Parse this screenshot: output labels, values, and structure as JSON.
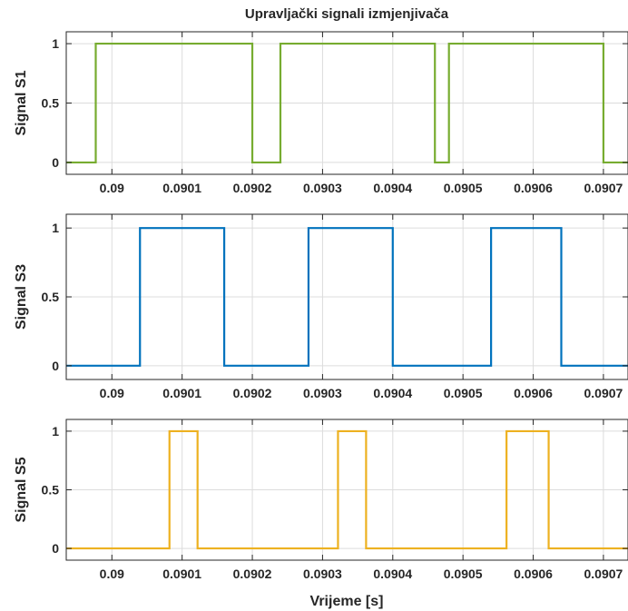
{
  "figure": {
    "title": "Upravljački signali izmjenjivača",
    "xlabel": "Vrijeme [s]"
  },
  "chart_data": [
    {
      "type": "line",
      "title": "Upravljački signali izmjenjivača",
      "xlabel": "",
      "ylabel": "Signal S1",
      "xlim": [
        0.089935,
        0.090735
      ],
      "ylim": [
        -0.1,
        1.1
      ],
      "grid": true,
      "x_ticks": [
        0.09,
        0.0901,
        0.0902,
        0.0903,
        0.0904,
        0.0905,
        0.0906,
        0.0907
      ],
      "x_tick_labels": [
        "0.09",
        "0.0901",
        "0.0902",
        "0.0903",
        "0.0904",
        "0.0905",
        "0.0906",
        "0.0907"
      ],
      "y_ticks": [
        0,
        0.5,
        1
      ],
      "y_tick_labels": [
        "0",
        "0.5",
        "1"
      ],
      "color": "#77AC30",
      "series": [
        {
          "x": [
            0.089935,
            0.089977,
            0.089977,
            0.0902,
            0.0902,
            0.09024,
            0.09024,
            0.09046,
            0.09046,
            0.09048,
            0.09048,
            0.0907,
            0.0907,
            0.090735
          ],
          "y": [
            0,
            0,
            1,
            1,
            0,
            0,
            1,
            1,
            0,
            0,
            1,
            1,
            0,
            0
          ]
        }
      ]
    },
    {
      "type": "line",
      "title": "",
      "xlabel": "",
      "ylabel": "Signal S3",
      "xlim": [
        0.089935,
        0.090735
      ],
      "ylim": [
        -0.1,
        1.1
      ],
      "grid": true,
      "x_ticks": [
        0.09,
        0.0901,
        0.0902,
        0.0903,
        0.0904,
        0.0905,
        0.0906,
        0.0907
      ],
      "x_tick_labels": [
        "0.09",
        "0.0901",
        "0.0902",
        "0.0903",
        "0.0904",
        "0.0905",
        "0.0906",
        "0.0907"
      ],
      "y_ticks": [
        0,
        0.5,
        1
      ],
      "y_tick_labels": [
        "0",
        "0.5",
        "1"
      ],
      "color": "#0072BD",
      "series": [
        {
          "x": [
            0.089935,
            0.09004,
            0.09004,
            0.09016,
            0.09016,
            0.09028,
            0.09028,
            0.0904,
            0.0904,
            0.09054,
            0.09054,
            0.09064,
            0.09064,
            0.090735
          ],
          "y": [
            0,
            0,
            1,
            1,
            0,
            0,
            1,
            1,
            0,
            0,
            1,
            1,
            0,
            0
          ]
        }
      ]
    },
    {
      "type": "line",
      "title": "",
      "xlabel": "Vrijeme [s]",
      "ylabel": "Signal S5",
      "xlim": [
        0.089935,
        0.090735
      ],
      "ylim": [
        -0.1,
        1.1
      ],
      "grid": true,
      "x_ticks": [
        0.09,
        0.0901,
        0.0902,
        0.0903,
        0.0904,
        0.0905,
        0.0906,
        0.0907
      ],
      "x_tick_labels": [
        "0.09",
        "0.0901",
        "0.0902",
        "0.0903",
        "0.0904",
        "0.0905",
        "0.0906",
        "0.0907"
      ],
      "y_ticks": [
        0,
        0.5,
        1
      ],
      "y_tick_labels": [
        "0",
        "0.5",
        "1"
      ],
      "color": "#EDB120",
      "series": [
        {
          "x": [
            0.089935,
            0.090082,
            0.090082,
            0.090122,
            0.090122,
            0.090322,
            0.090322,
            0.090362,
            0.090362,
            0.090562,
            0.090562,
            0.090622,
            0.090622,
            0.090735
          ],
          "y": [
            0,
            0,
            1,
            1,
            0,
            0,
            1,
            1,
            0,
            0,
            1,
            1,
            0,
            0
          ]
        }
      ]
    }
  ]
}
